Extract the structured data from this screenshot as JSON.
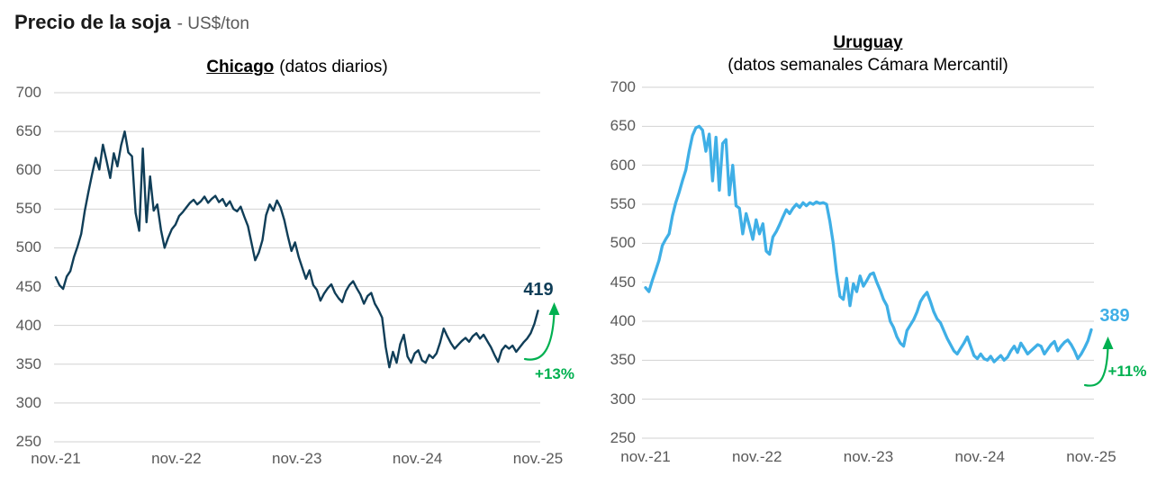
{
  "header": {
    "title": "Precio de la soja",
    "unit_label": "- US$/ton"
  },
  "style": {
    "background": "#ffffff",
    "grid_color": "#d2d2d2",
    "axis_text_color": "#595959",
    "annotation_green": "#00b050"
  },
  "chart_data": [
    {
      "type": "line",
      "title": "Chicago",
      "subtitle": "(datos diarios)",
      "line_color": "#103e58",
      "ylim": [
        250,
        700
      ],
      "y_ticks": [
        700,
        650,
        600,
        550,
        500,
        450,
        400,
        350,
        300,
        250
      ],
      "x_ticklabels": [
        "nov.-21",
        "nov.-22",
        "nov.-23",
        "nov.-24",
        "nov.-25"
      ],
      "grid": "horizontal-only",
      "legend": "none",
      "end_value": 419,
      "end_label": "419",
      "change_label": "+13%",
      "values": [
        462,
        452,
        447,
        463,
        470,
        488,
        502,
        518,
        548,
        572,
        595,
        616,
        601,
        633,
        612,
        590,
        622,
        605,
        632,
        650,
        623,
        618,
        545,
        522,
        628,
        533,
        592,
        548,
        556,
        523,
        500,
        513,
        524,
        530,
        541,
        546,
        552,
        558,
        562,
        556,
        560,
        566,
        558,
        563,
        567,
        559,
        563,
        554,
        560,
        550,
        547,
        553,
        540,
        528,
        506,
        484,
        494,
        510,
        542,
        556,
        548,
        561,
        552,
        536,
        515,
        496,
        507,
        488,
        474,
        460,
        471,
        452,
        446,
        432,
        441,
        448,
        453,
        442,
        435,
        430,
        444,
        452,
        457,
        448,
        440,
        428,
        438,
        442,
        428,
        420,
        410,
        372,
        346,
        366,
        352,
        376,
        388,
        360,
        352,
        364,
        368,
        355,
        352,
        362,
        358,
        364,
        378,
        396,
        386,
        377,
        370,
        375,
        380,
        384,
        379,
        386,
        390,
        383,
        388,
        380,
        372,
        362,
        353,
        368,
        374,
        370,
        374,
        366,
        372,
        378,
        383,
        390,
        402,
        419
      ]
    },
    {
      "type": "line",
      "title": "Uruguay",
      "subtitle": "(datos semanales Cámara Mercantil)",
      "line_color": "#3fafe6",
      "ylim": [
        250,
        700
      ],
      "y_ticks": [
        700,
        650,
        600,
        550,
        500,
        450,
        400,
        350,
        300,
        250
      ],
      "x_ticklabels": [
        "nov.-21",
        "nov.-22",
        "nov.-23",
        "nov.-24",
        "nov.-25"
      ],
      "grid": "horizontal-only",
      "legend": "none",
      "end_value": 389,
      "end_label": "389",
      "change_label": "+11%",
      "values": [
        443,
        438,
        452,
        465,
        478,
        497,
        505,
        512,
        535,
        552,
        565,
        580,
        594,
        618,
        638,
        648,
        650,
        645,
        618,
        640,
        580,
        636,
        568,
        628,
        633,
        562,
        600,
        548,
        545,
        512,
        538,
        522,
        505,
        530,
        512,
        525,
        490,
        486,
        508,
        515,
        524,
        534,
        543,
        538,
        545,
        550,
        546,
        552,
        548,
        552,
        550,
        553,
        551,
        552,
        550,
        528,
        500,
        462,
        432,
        428,
        455,
        420,
        448,
        438,
        458,
        445,
        452,
        460,
        462,
        450,
        440,
        428,
        420,
        400,
        392,
        380,
        372,
        368,
        388,
        395,
        402,
        412,
        425,
        432,
        437,
        425,
        412,
        403,
        398,
        388,
        378,
        370,
        362,
        358,
        365,
        372,
        380,
        368,
        356,
        352,
        358,
        352,
        350,
        355,
        348,
        352,
        356,
        350,
        354,
        362,
        368,
        360,
        372,
        365,
        358,
        362,
        366,
        370,
        368,
        358,
        364,
        370,
        374,
        362,
        368,
        373,
        376,
        370,
        362,
        352,
        358,
        366,
        375,
        389
      ]
    }
  ]
}
